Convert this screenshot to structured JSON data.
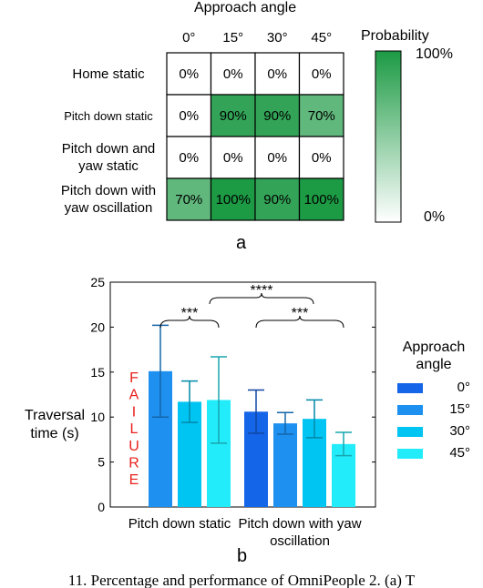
{
  "chart_data": [
    {
      "type": "heatmap",
      "panel_label": "a",
      "column_header": "Approach angle",
      "columns": [
        "0°",
        "15°",
        "30°",
        "45°"
      ],
      "rows": [
        "Home static",
        "Pitch down static",
        "Pitch down and yaw static",
        "Pitch down with yaw oscillation"
      ],
      "values": [
        [
          0,
          0,
          0,
          0
        ],
        [
          0,
          90,
          90,
          70
        ],
        [
          0,
          0,
          0,
          0
        ],
        [
          70,
          100,
          90,
          100
        ]
      ],
      "value_unit": "%",
      "colorbar": {
        "title": "Probability",
        "max_label": "100%",
        "min_label": "0%",
        "range": [
          0,
          100
        ]
      },
      "colors": {
        "low": "#ffffff",
        "high": "#1c9a44"
      }
    },
    {
      "type": "bar",
      "panel_label": "b",
      "ylabel": "Traversal time (s)",
      "ylim": [
        0,
        25
      ],
      "yticks": [
        0,
        5,
        10,
        15,
        20,
        25
      ],
      "categories": [
        "Pitch down static",
        "Pitch down with yaw oscillation"
      ],
      "legend": {
        "title": "Approach angle",
        "position": "right"
      },
      "series": [
        {
          "name": "0°",
          "color": "#1565e8",
          "values": [
            null,
            10.6
          ],
          "errors": [
            null,
            2.4
          ]
        },
        {
          "name": "15°",
          "color": "#1e90f0",
          "values": [
            15.1,
            9.3
          ],
          "errors": [
            5.1,
            1.2
          ]
        },
        {
          "name": "30°",
          "color": "#00c4f2",
          "values": [
            11.7,
            9.8
          ],
          "errors": [
            2.3,
            2.1
          ]
        },
        {
          "name": "45°",
          "color": "#22ecfa",
          "values": [
            11.9,
            7.0
          ],
          "errors": [
            4.8,
            1.3
          ]
        }
      ],
      "failure_label": "FAILURE",
      "failure_color": "#e8201c",
      "significance": [
        {
          "label": "***"
        },
        {
          "label": "****"
        },
        {
          "label": "***"
        }
      ]
    }
  ],
  "caption_text": "11. Percentage and performance of OmniPeople 2. (a) T"
}
